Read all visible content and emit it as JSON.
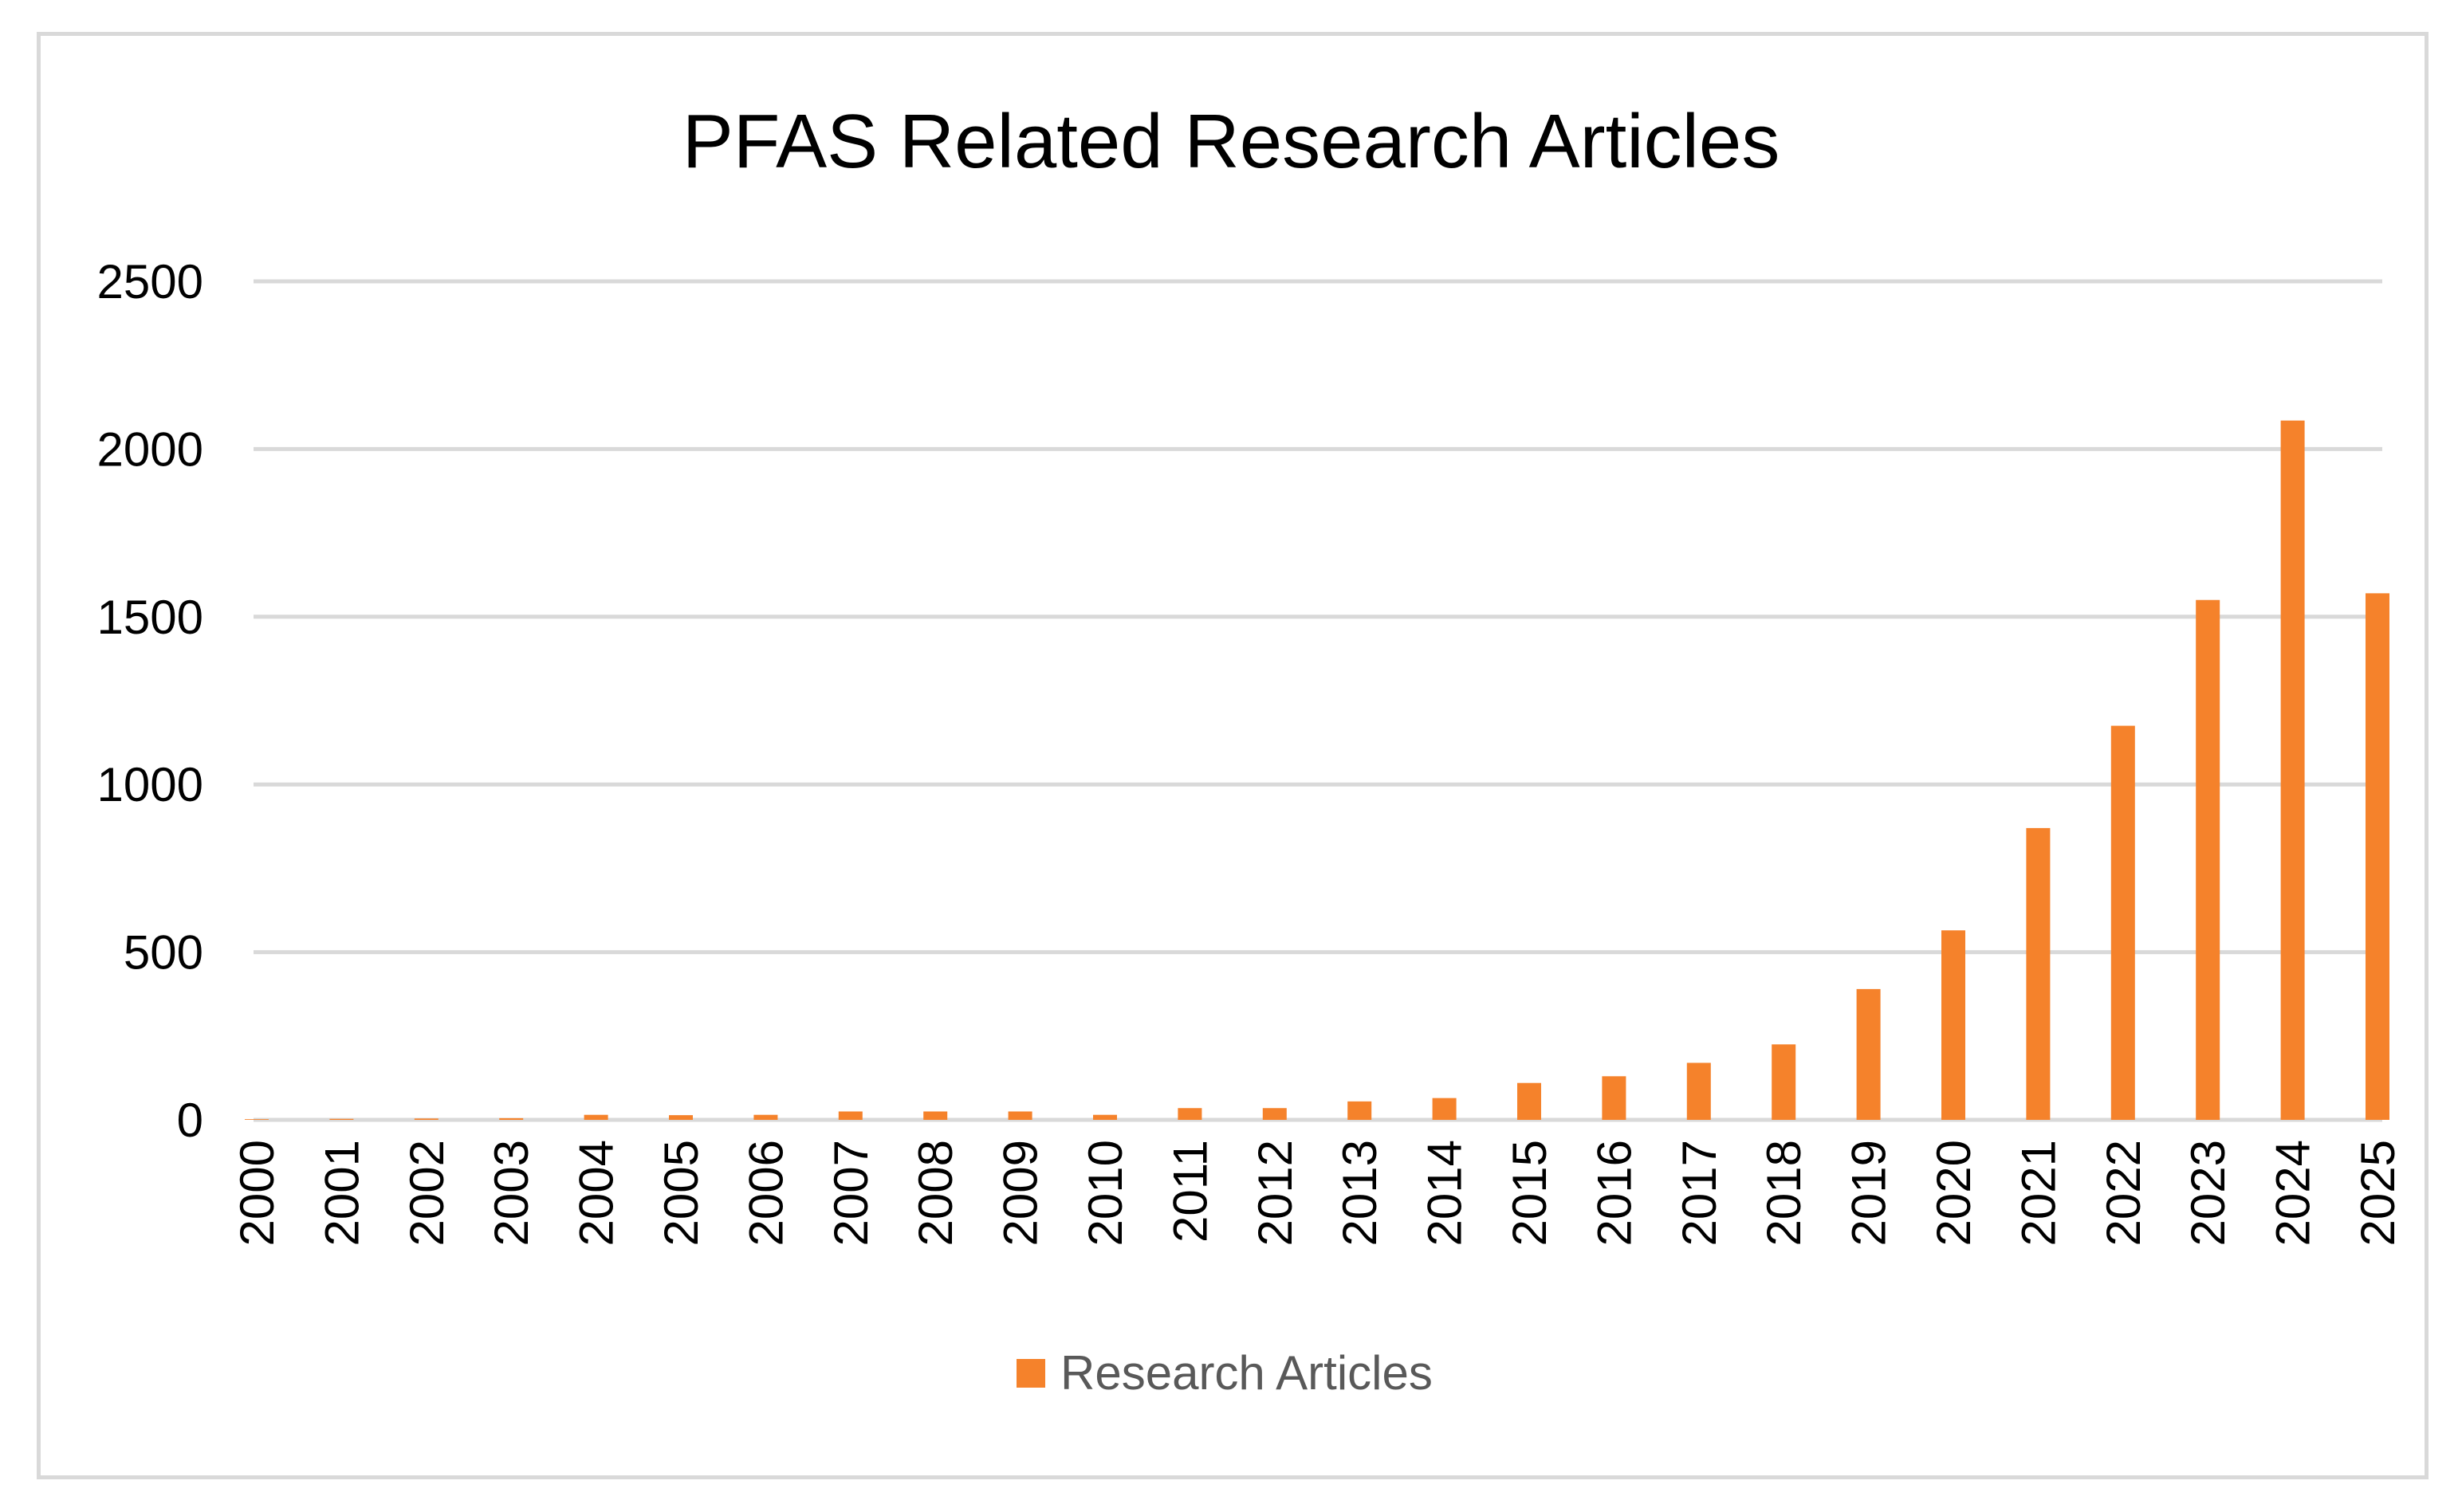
{
  "chart_data": {
    "type": "bar",
    "title": "PFAS Related Research Articles",
    "xlabel": "",
    "ylabel": "",
    "ylim": [
      0,
      2500
    ],
    "y_ticks": [
      "0",
      "500",
      "1000",
      "1500",
      "2000",
      "2500"
    ],
    "grid": true,
    "legend_position": "bottom",
    "categories": [
      "2000",
      "2001",
      "2002",
      "2003",
      "2004",
      "2005",
      "2006",
      "2007",
      "2008",
      "2009",
      "2010",
      "2011",
      "2012",
      "2013",
      "2014",
      "2015",
      "2016",
      "2017",
      "2018",
      "2019",
      "2020",
      "2021",
      "2022",
      "2023",
      "2024",
      "2025"
    ],
    "series": [
      {
        "name": "Research Articles",
        "color": "#f5822b",
        "values": [
          2,
          3,
          4,
          5,
          15,
          14,
          15,
          25,
          25,
          25,
          15,
          35,
          35,
          55,
          65,
          110,
          130,
          170,
          225,
          390,
          565,
          870,
          1175,
          1550,
          2085,
          1570
        ]
      }
    ]
  }
}
